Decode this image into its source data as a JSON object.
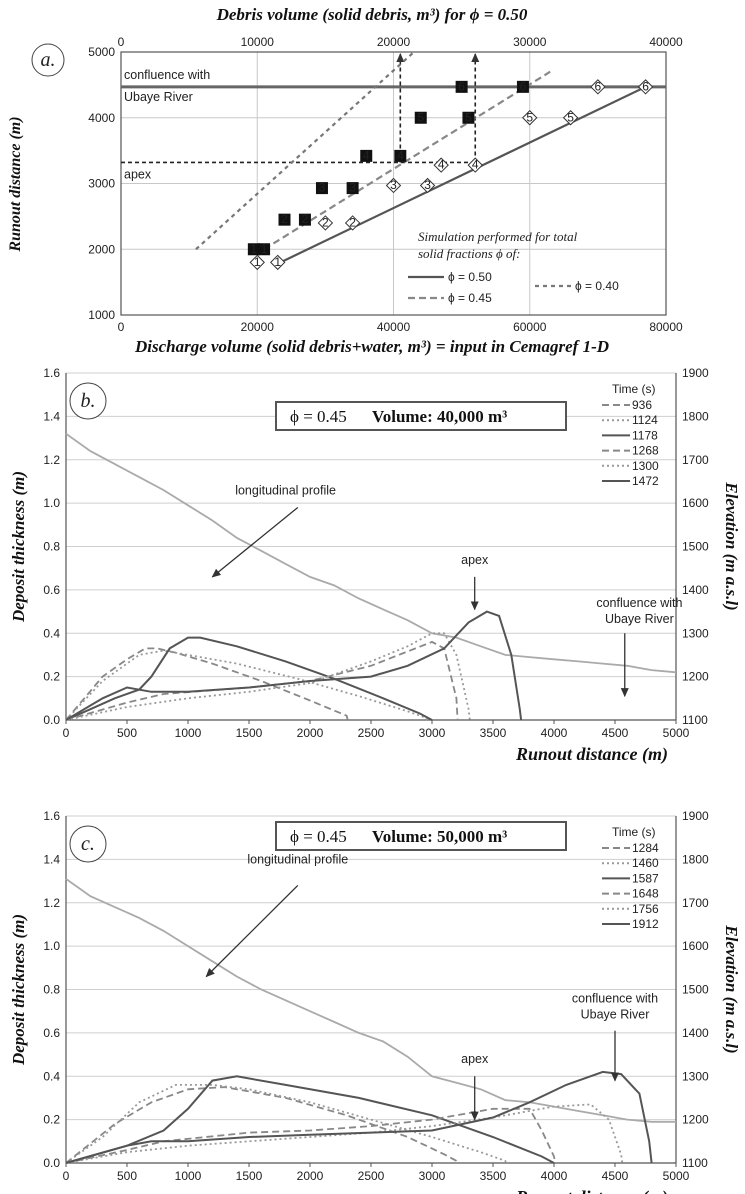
{
  "chart_data": [
    {
      "panel": "a.",
      "type": "scatter",
      "title": "Debris volume (solid debris, m³) for ϕ = 0.50",
      "xlabel": "Discharge volume (solid debris+water, m³) = input in Cemagref 1-D",
      "ylabel": "Runout distance (m)",
      "xlim": [
        0,
        80000
      ],
      "ylim": [
        1000,
        5000
      ],
      "x_ticks": [
        "0",
        "20000",
        "40000",
        "60000",
        "80000"
      ],
      "y_ticks": [
        "1000",
        "2000",
        "3000",
        "4000",
        "5000"
      ],
      "top_axis": {
        "lim": [
          0,
          40000
        ],
        "ticks": [
          "0",
          "10000",
          "20000",
          "30000",
          "40000"
        ]
      },
      "grid": true,
      "reference_lines": [
        {
          "label": "confluence with Ubaye River",
          "y": 4470
        },
        {
          "label": "apex",
          "y": 3320
        }
      ],
      "vertical_arrows": [
        {
          "x": 41000
        },
        {
          "x": 52000
        }
      ],
      "legend": {
        "title": "Simulation performed for total solid fractions ϕ of:",
        "entries": [
          "ϕ = 0.50",
          "ϕ = 0.45",
          "ϕ = 0.40"
        ],
        "position": "bottom-right"
      },
      "series": [
        {
          "name": "ϕ = 0.50",
          "style": "solid",
          "line": [
            [
              23000,
              1780
            ],
            [
              77000,
              4470
            ]
          ],
          "markers": "diamond",
          "points": [
            [
              20000,
              1800
            ],
            [
              23000,
              1800
            ],
            [
              30000,
              2400
            ],
            [
              34000,
              2400
            ],
            [
              40000,
              2970
            ],
            [
              45000,
              2970
            ],
            [
              47000,
              3280
            ],
            [
              52000,
              3280
            ],
            [
              60000,
              4000
            ],
            [
              66000,
              4000
            ],
            [
              70000,
              4470
            ],
            [
              77000,
              4470
            ]
          ],
          "labels": [
            "1",
            "1",
            "2",
            "2",
            "3",
            "3",
            "4",
            "4",
            "5",
            "5",
            "6",
            "6"
          ]
        },
        {
          "name": "ϕ = 0.45",
          "style": "dash",
          "line": [
            [
              21000,
              2000
            ],
            [
              63000,
              4700
            ]
          ],
          "markers": "square",
          "points": [
            [
              19500,
              2000
            ],
            [
              21000,
              2000
            ],
            [
              24000,
              2450
            ],
            [
              27000,
              2450
            ],
            [
              29500,
              2930
            ],
            [
              34000,
              2930
            ],
            [
              36000,
              3420
            ],
            [
              41000,
              3420
            ],
            [
              44000,
              4000
            ],
            [
              51000,
              4000
            ],
            [
              50000,
              4470
            ],
            [
              59000,
              4470
            ]
          ],
          "labels": [
            "1",
            "1",
            "2",
            "2",
            "3",
            "3",
            "4",
            "4",
            "5",
            "5",
            "6",
            "6"
          ]
        },
        {
          "name": "ϕ = 0.40",
          "style": "short-dash",
          "line": [
            [
              11000,
              2000
            ],
            [
              43000,
              5000
            ]
          ],
          "points": []
        }
      ]
    },
    {
      "panel": "b.",
      "type": "line",
      "header": {
        "phi": "ϕ = 0.45",
        "volume": "Volume: 40,000 m³"
      },
      "xlabel": "Runout distance (m)",
      "ylabel": "Deposit thickness (m)",
      "y2label": "Elevation (m a.s.l)",
      "xlim": [
        0,
        5000
      ],
      "ylim": [
        0,
        1.6
      ],
      "y2lim": [
        1100,
        1900
      ],
      "x_ticks": [
        "0",
        "500",
        "1000",
        "1500",
        "2000",
        "2500",
        "3000",
        "3500",
        "4000",
        "4500",
        "5000"
      ],
      "y_ticks": [
        "0.0",
        "0.2",
        "0.4",
        "0.6",
        "0.8",
        "1.0",
        "1.2",
        "1.4",
        "1.6"
      ],
      "y2_ticks": [
        "1100",
        "1200",
        "1300",
        "1400",
        "1500",
        "1600",
        "1700",
        "1800",
        "1900"
      ],
      "legend_title": "Time (s)",
      "grid": true,
      "annotations": [
        {
          "text": "longitudinal profile",
          "x": 1800,
          "y": 1.04
        },
        {
          "text": "apex",
          "x": 3350,
          "y": 0.72
        },
        {
          "text": "confluence with Ubaye River",
          "x": 4700,
          "y": 0.52
        }
      ],
      "arrows": [
        {
          "from": [
            1900,
            0.98
          ],
          "to": [
            1200,
            0.66
          ]
        },
        {
          "from": [
            3350,
            0.66
          ],
          "to": [
            3350,
            0.51
          ]
        },
        {
          "from": [
            4580,
            0.4
          ],
          "to": [
            4580,
            0.11
          ]
        }
      ],
      "profile": {
        "name": "longitudinal profile",
        "axis": "y2",
        "x": [
          0,
          200,
          400,
          600,
          800,
          1000,
          1200,
          1400,
          1600,
          1800,
          2000,
          2200,
          2400,
          2600,
          2800,
          3000,
          3200,
          3400,
          3600,
          3800,
          4000,
          4200,
          4400,
          4600,
          4800,
          5000
        ],
        "y": [
          1760,
          1720,
          1690,
          1660,
          1630,
          1595,
          1560,
          1520,
          1490,
          1460,
          1430,
          1410,
          1380,
          1355,
          1330,
          1300,
          1290,
          1270,
          1250,
          1245,
          1240,
          1235,
          1230,
          1225,
          1215,
          1210
        ]
      },
      "series": [
        {
          "name": "936",
          "style": "dash",
          "x": [
            0,
            300,
            500,
            650,
            750,
            900,
            1200,
            1600,
            2000,
            2300,
            2310
          ],
          "y": [
            0,
            0.2,
            0.28,
            0.33,
            0.33,
            0.31,
            0.26,
            0.18,
            0.09,
            0.02,
            0
          ]
        },
        {
          "name": "1124",
          "style": "dot",
          "x": [
            0,
            300,
            600,
            800,
            1000,
            1400,
            1900,
            2400,
            2800,
            2950,
            2960
          ],
          "y": [
            0,
            0.18,
            0.3,
            0.32,
            0.3,
            0.26,
            0.19,
            0.11,
            0.04,
            0.01,
            0
          ]
        },
        {
          "name": "1178",
          "style": "solid",
          "x": [
            0,
            200,
            400,
            600,
            700,
            850,
            1000,
            1100,
            1400,
            1800,
            2200,
            2600,
            2900,
            3000
          ],
          "y": [
            0,
            0.05,
            0.1,
            0.14,
            0.2,
            0.33,
            0.38,
            0.38,
            0.34,
            0.27,
            0.19,
            0.1,
            0.03,
            0
          ]
        },
        {
          "name": "1268",
          "style": "dash",
          "x": [
            0,
            500,
            800,
            1500,
            2000,
            2500,
            3000,
            3100,
            3200,
            3210
          ],
          "y": [
            0,
            0.08,
            0.12,
            0.15,
            0.18,
            0.25,
            0.36,
            0.33,
            0.1,
            0
          ]
        },
        {
          "name": "1300",
          "style": "dot",
          "x": [
            0,
            500,
            1000,
            1500,
            2000,
            2500,
            2800,
            3000,
            3100,
            3200,
            3300,
            3310
          ],
          "y": [
            0,
            0.06,
            0.1,
            0.13,
            0.17,
            0.27,
            0.34,
            0.4,
            0.4,
            0.3,
            0.05,
            0
          ]
        },
        {
          "name": "1472",
          "style": "solid",
          "x": [
            0,
            300,
            500,
            700,
            1000,
            1500,
            2000,
            2500,
            2800,
            3100,
            3300,
            3450,
            3550,
            3650,
            3720,
            3730
          ],
          "y": [
            0,
            0.1,
            0.15,
            0.13,
            0.13,
            0.15,
            0.18,
            0.2,
            0.25,
            0.33,
            0.45,
            0.5,
            0.48,
            0.3,
            0.05,
            0
          ]
        }
      ]
    },
    {
      "panel": "c.",
      "type": "line",
      "header": {
        "phi": "ϕ = 0.45",
        "volume": "Volume: 50,000 m³"
      },
      "xlabel": "Runout distance (m)",
      "ylabel": "Deposit thickness (m)",
      "y2label": "Elevation (m a.s.l)",
      "xlim": [
        0,
        5000
      ],
      "ylim": [
        0,
        1.6
      ],
      "y2lim": [
        1100,
        1900
      ],
      "x_ticks": [
        "0",
        "500",
        "1000",
        "1500",
        "2000",
        "2500",
        "3000",
        "3500",
        "4000",
        "4500",
        "5000"
      ],
      "y_ticks": [
        "0.0",
        "0.2",
        "0.4",
        "0.6",
        "0.8",
        "1.0",
        "1.2",
        "1.4",
        "1.6"
      ],
      "y2_ticks": [
        "1100",
        "1200",
        "1300",
        "1400",
        "1500",
        "1600",
        "1700",
        "1800",
        "1900"
      ],
      "legend_title": "Time (s)",
      "grid": true,
      "annotations": [
        {
          "text": "longitudinal profile",
          "x": 1900,
          "y": 1.38
        },
        {
          "text": "apex",
          "x": 3350,
          "y": 0.46
        },
        {
          "text": "confluence with Ubaye River",
          "x": 4500,
          "y": 0.74
        }
      ],
      "arrows": [
        {
          "from": [
            1900,
            1.28
          ],
          "to": [
            1150,
            0.86
          ]
        },
        {
          "from": [
            3350,
            0.4
          ],
          "to": [
            3350,
            0.2
          ]
        },
        {
          "from": [
            4500,
            0.61
          ],
          "to": [
            4500,
            0.38
          ]
        }
      ],
      "profile": {
        "name": "longitudinal profile",
        "axis": "y2",
        "x": [
          0,
          200,
          400,
          600,
          800,
          1000,
          1200,
          1400,
          1600,
          1800,
          2000,
          2200,
          2400,
          2600,
          2800,
          3000,
          3200,
          3400,
          3600,
          3800,
          4000,
          4200,
          4400,
          4600,
          4800,
          5000
        ],
        "y": [
          1755,
          1715,
          1690,
          1665,
          1635,
          1600,
          1565,
          1530,
          1500,
          1475,
          1450,
          1425,
          1400,
          1380,
          1345,
          1300,
          1285,
          1270,
          1245,
          1240,
          1230,
          1220,
          1210,
          1200,
          1195,
          1195
        ]
      },
      "series": [
        {
          "name": "1284",
          "style": "dash",
          "x": [
            0,
            400,
            700,
            1000,
            1300,
            1800,
            2300,
            2800,
            3100,
            3200,
            3210
          ],
          "y": [
            0,
            0.18,
            0.28,
            0.34,
            0.35,
            0.3,
            0.22,
            0.12,
            0.04,
            0.01,
            0
          ]
        },
        {
          "name": "1460",
          "style": "dot",
          "x": [
            0,
            300,
            600,
            900,
            1200,
            1500,
            2000,
            2500,
            3000,
            3400,
            3600,
            3610
          ],
          "y": [
            0,
            0.12,
            0.28,
            0.36,
            0.36,
            0.34,
            0.28,
            0.2,
            0.12,
            0.05,
            0.01,
            0
          ]
        },
        {
          "name": "1587",
          "style": "solid",
          "x": [
            0,
            500,
            800,
            1000,
            1200,
            1400,
            1800,
            2400,
            3000,
            3500,
            3900,
            4000
          ],
          "y": [
            0,
            0.08,
            0.15,
            0.25,
            0.38,
            0.4,
            0.36,
            0.3,
            0.22,
            0.12,
            0.03,
            0
          ]
        },
        {
          "name": "1648",
          "style": "dash",
          "x": [
            0,
            500,
            800,
            1500,
            2000,
            2500,
            3000,
            3500,
            3800,
            3900,
            4000,
            4010
          ],
          "y": [
            0,
            0.06,
            0.1,
            0.14,
            0.15,
            0.17,
            0.2,
            0.25,
            0.25,
            0.15,
            0.03,
            0
          ]
        },
        {
          "name": "1756",
          "style": "dot",
          "x": [
            0,
            500,
            1000,
            1500,
            2000,
            2500,
            3000,
            3500,
            4000,
            4300,
            4450,
            4550,
            4560
          ],
          "y": [
            0,
            0.05,
            0.08,
            0.1,
            0.12,
            0.14,
            0.17,
            0.21,
            0.26,
            0.27,
            0.2,
            0.04,
            0
          ]
        },
        {
          "name": "1912",
          "style": "solid",
          "x": [
            0,
            500,
            700,
            1000,
            1500,
            2000,
            2500,
            3000,
            3500,
            3800,
            4100,
            4400,
            4550,
            4700,
            4780,
            4800
          ],
          "y": [
            0,
            0.08,
            0.1,
            0.1,
            0.12,
            0.13,
            0.14,
            0.15,
            0.21,
            0.28,
            0.36,
            0.42,
            0.41,
            0.32,
            0.1,
            0
          ]
        }
      ]
    }
  ]
}
